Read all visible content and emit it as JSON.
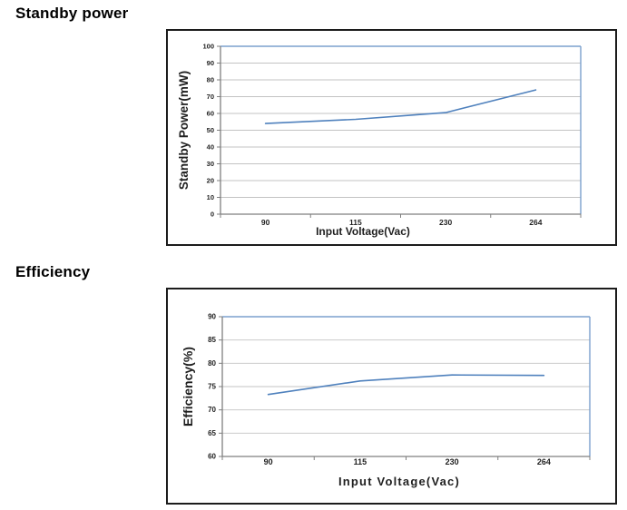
{
  "page_background": "#ffffff",
  "sections": [
    {
      "heading": "Standby power"
    },
    {
      "heading": "Efficiency"
    }
  ],
  "chart_data": [
    {
      "name": "standby-power-chart",
      "type": "line",
      "categories": [
        "90",
        "115",
        "230",
        "264"
      ],
      "series": [
        {
          "name": "Standby Power",
          "values": [
            54,
            56.5,
            60.5,
            74
          ]
        }
      ],
      "xlabel": "Input Voltage(Vac)",
      "ylabel": "Standby Power(mW)",
      "ylim": [
        0,
        100
      ],
      "ytick_step": 10,
      "grid": true,
      "legend": "none",
      "colors": {
        "series": "#4f81bd",
        "grid": "#c3c3c3",
        "axis": "#7f7f7f",
        "plot_border": "#7ba0cd",
        "text": "#1f1f1f"
      }
    },
    {
      "name": "efficiency-chart",
      "type": "line",
      "categories": [
        "90",
        "115",
        "230",
        "264"
      ],
      "series": [
        {
          "name": "Efficiency",
          "values": [
            73.3,
            76.2,
            77.5,
            77.4
          ]
        }
      ],
      "xlabel": "Input Voltage(Vac)",
      "ylabel": "Efficiency(%)",
      "ylim": [
        60,
        90
      ],
      "ytick_step": 5,
      "grid": true,
      "legend": "none",
      "colors": {
        "series": "#4f81bd",
        "grid": "#c3c3c3",
        "axis": "#7f7f7f",
        "plot_border": "#7ba0cd",
        "text": "#1f1f1f"
      }
    }
  ]
}
